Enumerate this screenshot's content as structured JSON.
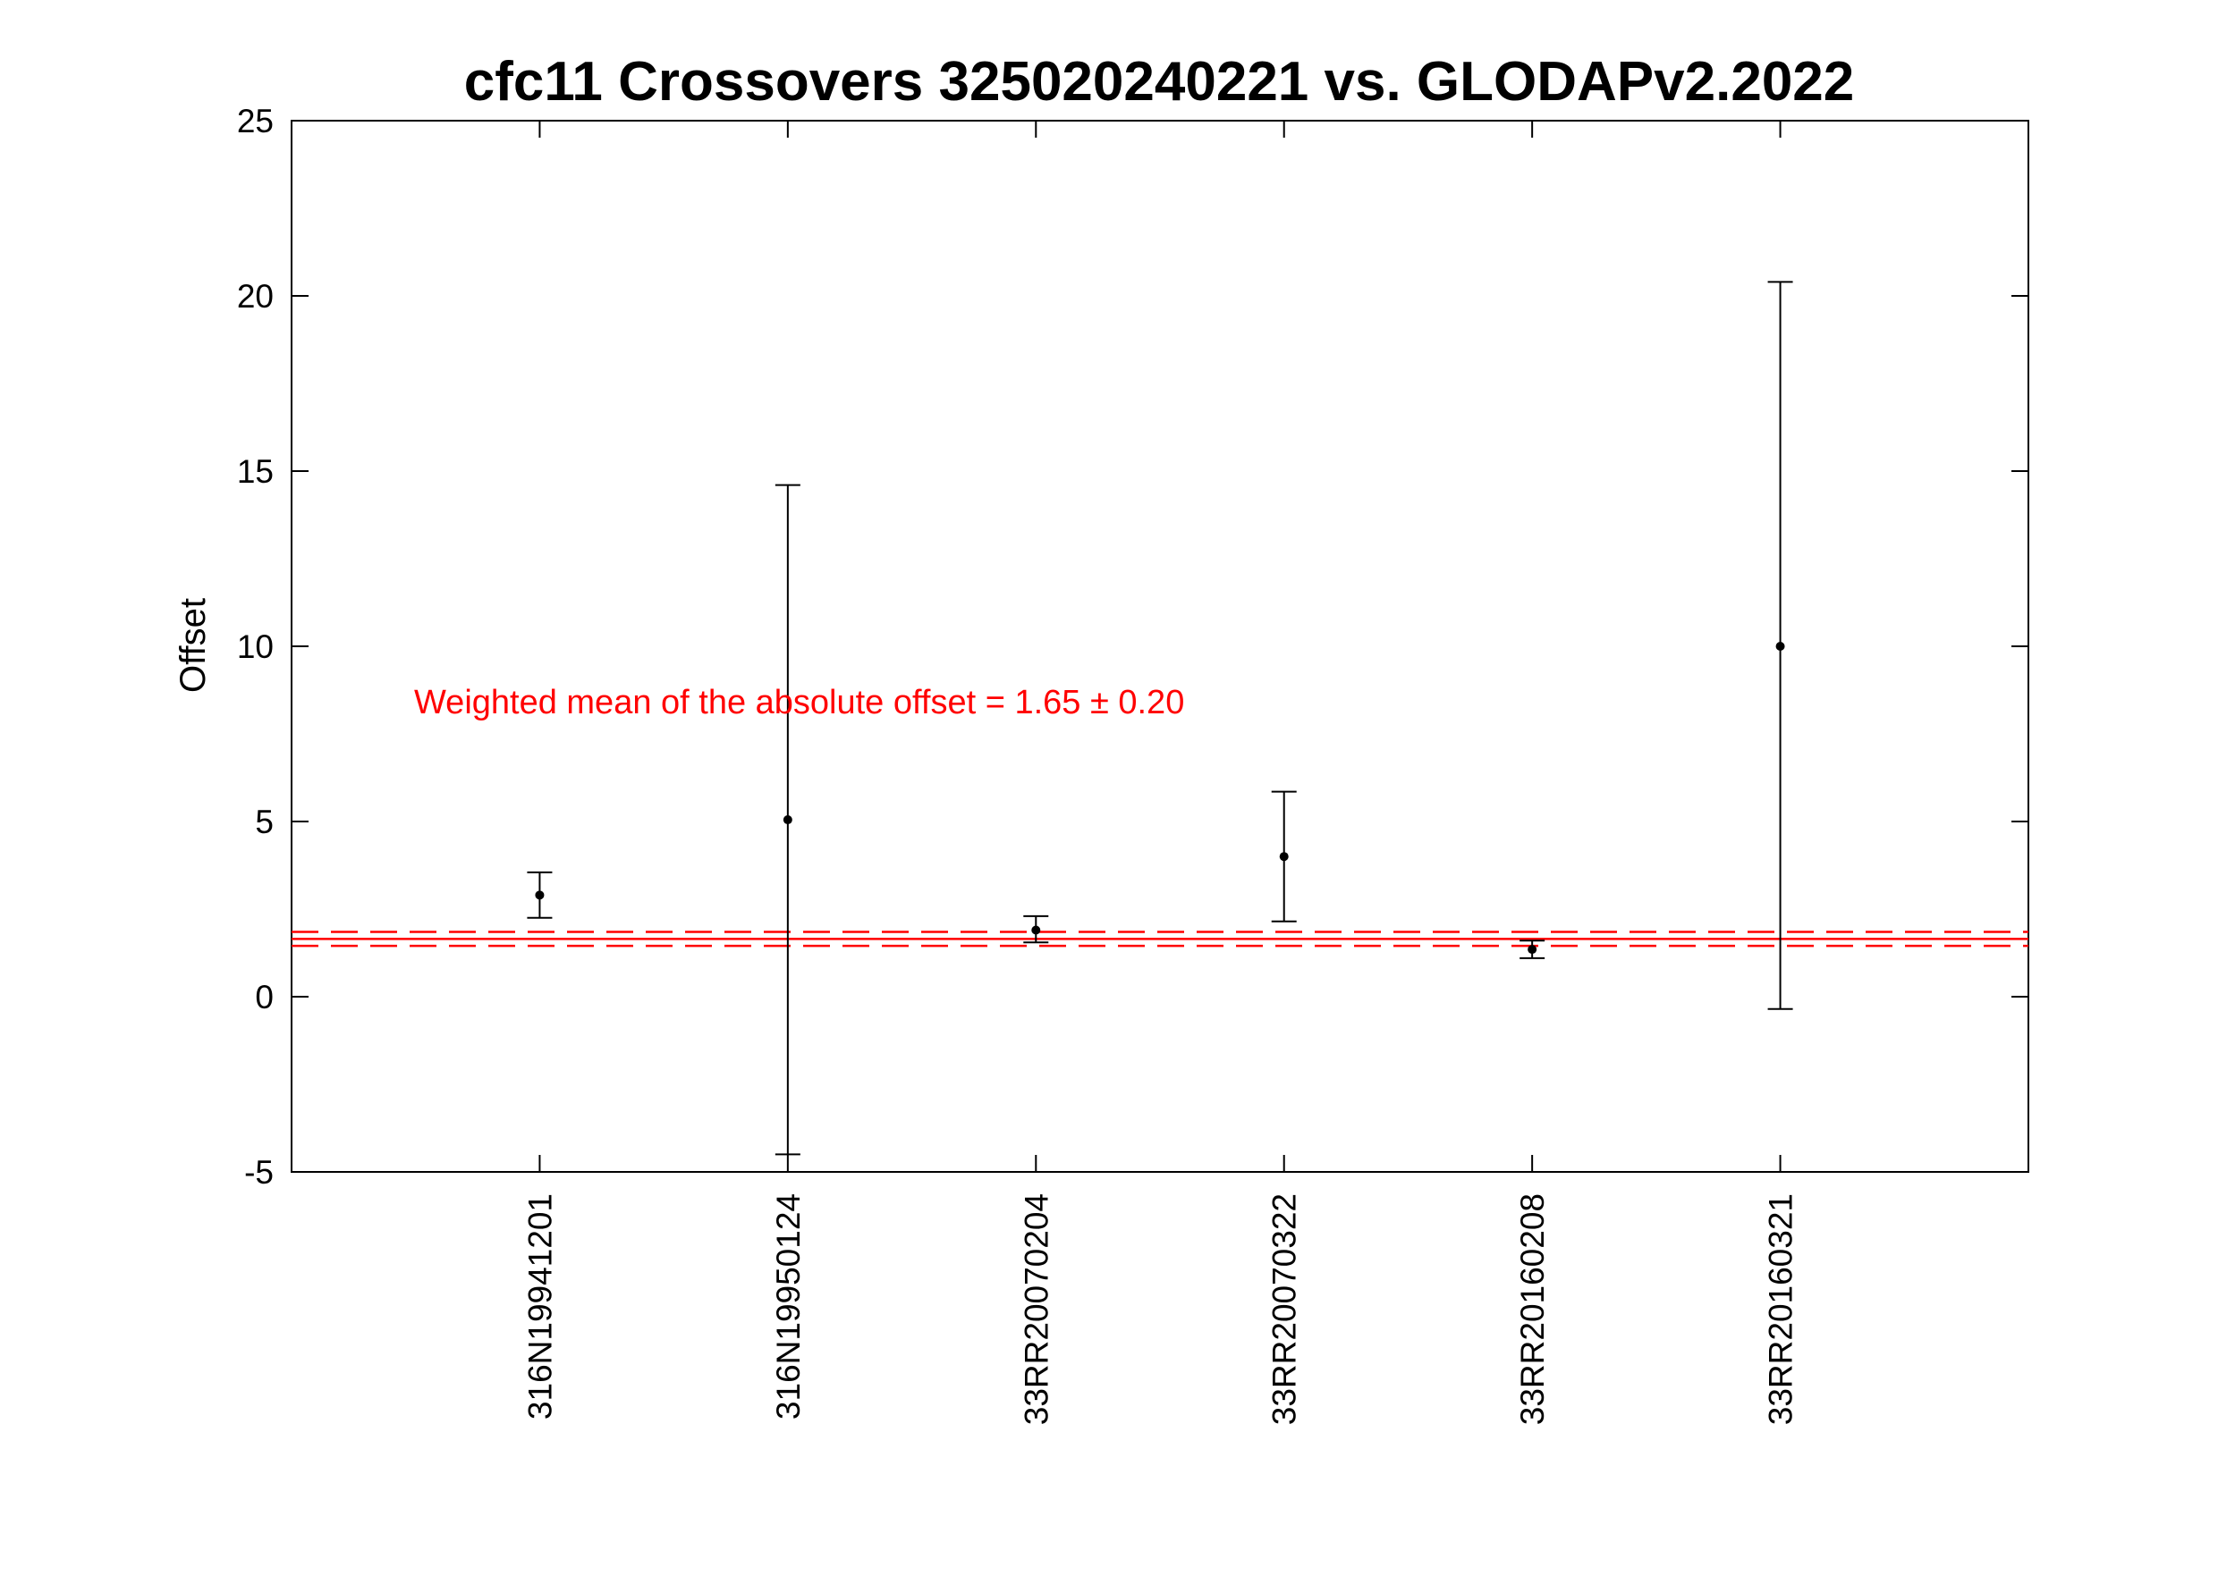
{
  "chart_data": {
    "type": "scatter",
    "title": "cfc11 Crossovers 325020240221 vs. GLODAPv2.2022",
    "xlabel": "",
    "ylabel": "Offset",
    "ylim": [
      -5,
      25
    ],
    "yticks": [
      -5,
      0,
      5,
      10,
      15,
      20,
      25
    ],
    "ytick_labels": [
      "-5",
      "0",
      "5",
      "10",
      "15",
      "20",
      "25"
    ],
    "categories": [
      "316N19941201",
      "316N19950124",
      "33RR20070204",
      "33RR20070322",
      "33RR20160208",
      "33RR20160321"
    ],
    "values": [
      2.9,
      5.05,
      1.9,
      4.0,
      1.35,
      10.0
    ],
    "error_low": [
      2.25,
      -4.5,
      1.55,
      2.15,
      1.1,
      -0.35
    ],
    "error_high": [
      3.55,
      14.6,
      2.3,
      5.85,
      1.6,
      20.4
    ],
    "mean_line": {
      "value": 1.65,
      "band": [
        1.45,
        1.85
      ],
      "color": "#ff0000"
    },
    "annotation": {
      "text": "Weighted mean of the absolute offset = 1.65 ± 0.20",
      "color": "#ff0000"
    },
    "grid": false,
    "legend": "none"
  }
}
